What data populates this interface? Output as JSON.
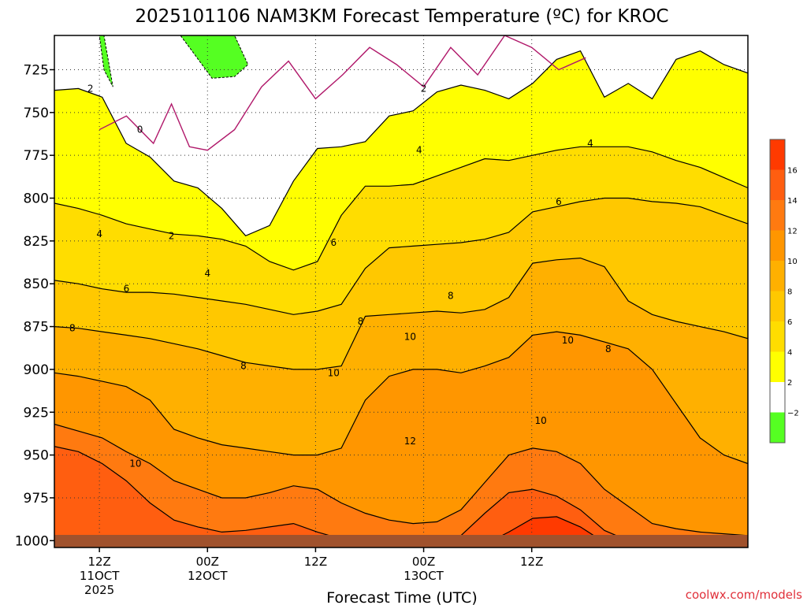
{
  "chart_data": {
    "type": "heatmap",
    "title": "2025101106 NAM3KM Forecast Temperature (ºC) for KROC",
    "xlabel": "Forecast Time (UTC)",
    "ylabel": "",
    "credit": "coolwx.com/models",
    "y_axis": {
      "unit": "hPa",
      "inverted": true,
      "range": [
        1004,
        705
      ],
      "ticks": [
        "725",
        "750",
        "775",
        "800",
        "825",
        "850",
        "875",
        "900",
        "925",
        "950",
        "975",
        "1000"
      ],
      "tick_values": [
        725,
        750,
        775,
        800,
        825,
        850,
        875,
        900,
        925,
        950,
        975,
        1000
      ],
      "grid": "dotted"
    },
    "x_axis": {
      "range_hours": [
        7,
        84
      ],
      "ticks": [
        {
          "hour": 12,
          "line1": "12Z",
          "line2": "11OCT",
          "line3": "2025"
        },
        {
          "hour": 24,
          "line1": "00Z",
          "line2": "12OCT",
          "line3": ""
        },
        {
          "hour": 36,
          "line1": "12Z",
          "line2": "",
          "line3": ""
        },
        {
          "hour": 48,
          "line1": "00Z",
          "line2": "13OCT",
          "line3": ""
        },
        {
          "hour": 60,
          "line1": "12Z",
          "line2": "",
          "line3": ""
        }
      ],
      "grid": "dotted"
    },
    "colorbar": {
      "placement": "right",
      "bands": [
        {
          "min": -4,
          "max": -2,
          "color": "#55ff22"
        },
        {
          "min": -2,
          "max": 2,
          "color": "#ffffff"
        },
        {
          "min": 2,
          "max": 4,
          "color": "#ffff00"
        },
        {
          "min": 4,
          "max": 6,
          "color": "#ffdd00"
        },
        {
          "min": 6,
          "max": 8,
          "color": "#ffc800"
        },
        {
          "min": 8,
          "max": 10,
          "color": "#ffb000"
        },
        {
          "min": 10,
          "max": 12,
          "color": "#ff9600"
        },
        {
          "min": 12,
          "max": 14,
          "color": "#ff7a10"
        },
        {
          "min": 14,
          "max": 16,
          "color": "#ff5e10"
        },
        {
          "min": 16,
          "max": 18,
          "color": "#ff3a00"
        }
      ],
      "tick_labels": [
        "−2",
        "2",
        "4",
        "6",
        "8",
        "10",
        "12",
        "14",
        "16"
      ],
      "tick_values": [
        -2,
        2,
        4,
        6,
        8,
        10,
        12,
        14,
        16
      ]
    },
    "ground_color": "#a0522d",
    "zero_isotherm_color": "#b0186a",
    "isotherms": [
      {
        "value": 2,
        "pressure": [
          737,
          736,
          741,
          768,
          776,
          790,
          794,
          806,
          822,
          816,
          790,
          771,
          770,
          767,
          752,
          749,
          738,
          734,
          737,
          742,
          733,
          719,
          714,
          741,
          733,
          742,
          719,
          714,
          722,
          727
        ]
      },
      {
        "value": 4,
        "pressure": [
          803,
          806,
          810,
          815,
          818,
          821,
          822,
          824,
          828,
          837,
          842,
          837,
          810,
          793,
          793,
          792,
          787,
          782,
          777,
          778,
          775,
          772,
          770,
          770,
          770,
          773,
          778,
          782,
          788,
          794
        ]
      },
      {
        "value": 6,
        "pressure": [
          848,
          850,
          853,
          855,
          855,
          856,
          858,
          860,
          862,
          865,
          868,
          866,
          862,
          841,
          829,
          828,
          827,
          826,
          824,
          820,
          808,
          805,
          802,
          800,
          800,
          802,
          803,
          805,
          810,
          815
        ]
      },
      {
        "value": 8,
        "pressure": [
          875,
          876,
          878,
          880,
          882,
          885,
          888,
          892,
          896,
          898,
          900,
          900,
          898,
          869,
          868,
          867,
          866,
          867,
          865,
          858,
          838,
          836,
          835,
          840,
          860,
          868,
          872,
          875,
          878,
          882
        ]
      },
      {
        "value": 10,
        "pressure": [
          902,
          904,
          907,
          910,
          918,
          935,
          940,
          944,
          946,
          948,
          950,
          950,
          946,
          918,
          904,
          900,
          900,
          902,
          898,
          893,
          880,
          878,
          880,
          884,
          888,
          900,
          920,
          940,
          950,
          955
        ]
      },
      {
        "value": 12,
        "pressure": [
          932,
          936,
          940,
          948,
          955,
          965,
          970,
          975,
          975,
          972,
          968,
          970,
          978,
          984,
          988,
          990,
          989,
          982,
          966,
          950,
          946,
          948,
          955,
          970,
          980,
          990,
          993,
          995,
          996,
          997
        ]
      },
      {
        "value": 14,
        "pressure": [
          945,
          948,
          955,
          965,
          978,
          988,
          992,
          995,
          994,
          992,
          990,
          995,
          999,
          1000,
          1001,
          1002,
          1001,
          997,
          984,
          972,
          970,
          974,
          982,
          994,
          1000,
          1001,
          1002,
          1002,
          1002,
          1002
        ]
      },
      {
        "value": 16,
        "pressure": [
          1002,
          1002,
          1002,
          1002,
          1002,
          1002,
          1002,
          1002,
          1002,
          1002,
          1002,
          1002,
          1002,
          1002,
          1002,
          1002,
          1002,
          1002,
          1002,
          995,
          987,
          986,
          992,
          1001,
          1002,
          1002,
          1002,
          1002,
          1002,
          1002
        ]
      }
    ],
    "isotherm_hours": [
      7,
      9.66,
      12.31,
      14.97,
      17.62,
      20.28,
      22.93,
      25.59,
      28.24,
      30.9,
      33.55,
      36.21,
      38.86,
      41.52,
      44.17,
      46.83,
      49.48,
      52.14,
      54.79,
      57.45,
      60.1,
      62.76,
      65.41,
      68.07,
      70.72,
      73.38,
      76.03,
      78.69,
      81.34,
      84
    ],
    "freezing_line": {
      "value": 0,
      "hours": [
        12,
        15,
        18,
        20,
        22,
        24,
        27,
        30,
        33,
        36,
        39,
        42,
        45,
        48,
        51,
        54,
        57,
        60,
        63,
        66
      ],
      "pressure": [
        760,
        752,
        768,
        745,
        770,
        772,
        760,
        735,
        720,
        742,
        728,
        712,
        722,
        735,
        712,
        728,
        705,
        712,
        725,
        718
      ]
    },
    "below_minus2_areas": [
      {
        "hours": [
          12,
          12.5,
          13,
          13.5,
          12.5,
          12
        ],
        "pressure": [
          705,
          705,
          720,
          735,
          725,
          705
        ]
      },
      {
        "hours": [
          21,
          24,
          27,
          28.5,
          27,
          24.5,
          22,
          21
        ],
        "pressure": [
          705,
          705,
          705,
          722,
          729,
          730,
          712,
          705
        ]
      }
    ],
    "contour_labels": [
      {
        "text": "2",
        "hour": 11.0,
        "p": 736
      },
      {
        "text": "0",
        "hour": 16.5,
        "p": 760
      },
      {
        "text": "2",
        "hour": 20.0,
        "p": 822
      },
      {
        "text": "4",
        "hour": 12.0,
        "p": 821
      },
      {
        "text": "4",
        "hour": 24.0,
        "p": 844
      },
      {
        "text": "6",
        "hour": 15.0,
        "p": 853
      },
      {
        "text": "6",
        "hour": 38.0,
        "p": 826
      },
      {
        "text": "4",
        "hour": 47.5,
        "p": 772
      },
      {
        "text": "2",
        "hour": 48.0,
        "p": 736
      },
      {
        "text": "4",
        "hour": 66.5,
        "p": 768
      },
      {
        "text": "6",
        "hour": 63.0,
        "p": 802
      },
      {
        "text": "8",
        "hour": 9.0,
        "p": 876
      },
      {
        "text": "8",
        "hour": 28.0,
        "p": 898
      },
      {
        "text": "8",
        "hour": 41.0,
        "p": 872
      },
      {
        "text": "8",
        "hour": 51.0,
        "p": 857
      },
      {
        "text": "8",
        "hour": 68.5,
        "p": 888
      },
      {
        "text": "10",
        "hour": 16.0,
        "p": 955
      },
      {
        "text": "10",
        "hour": 38.0,
        "p": 902
      },
      {
        "text": "10",
        "hour": 46.5,
        "p": 881
      },
      {
        "text": "10",
        "hour": 64.0,
        "p": 883
      },
      {
        "text": "10",
        "hour": 61.0,
        "p": 930
      },
      {
        "text": "12",
        "hour": 46.5,
        "p": 942
      }
    ]
  }
}
